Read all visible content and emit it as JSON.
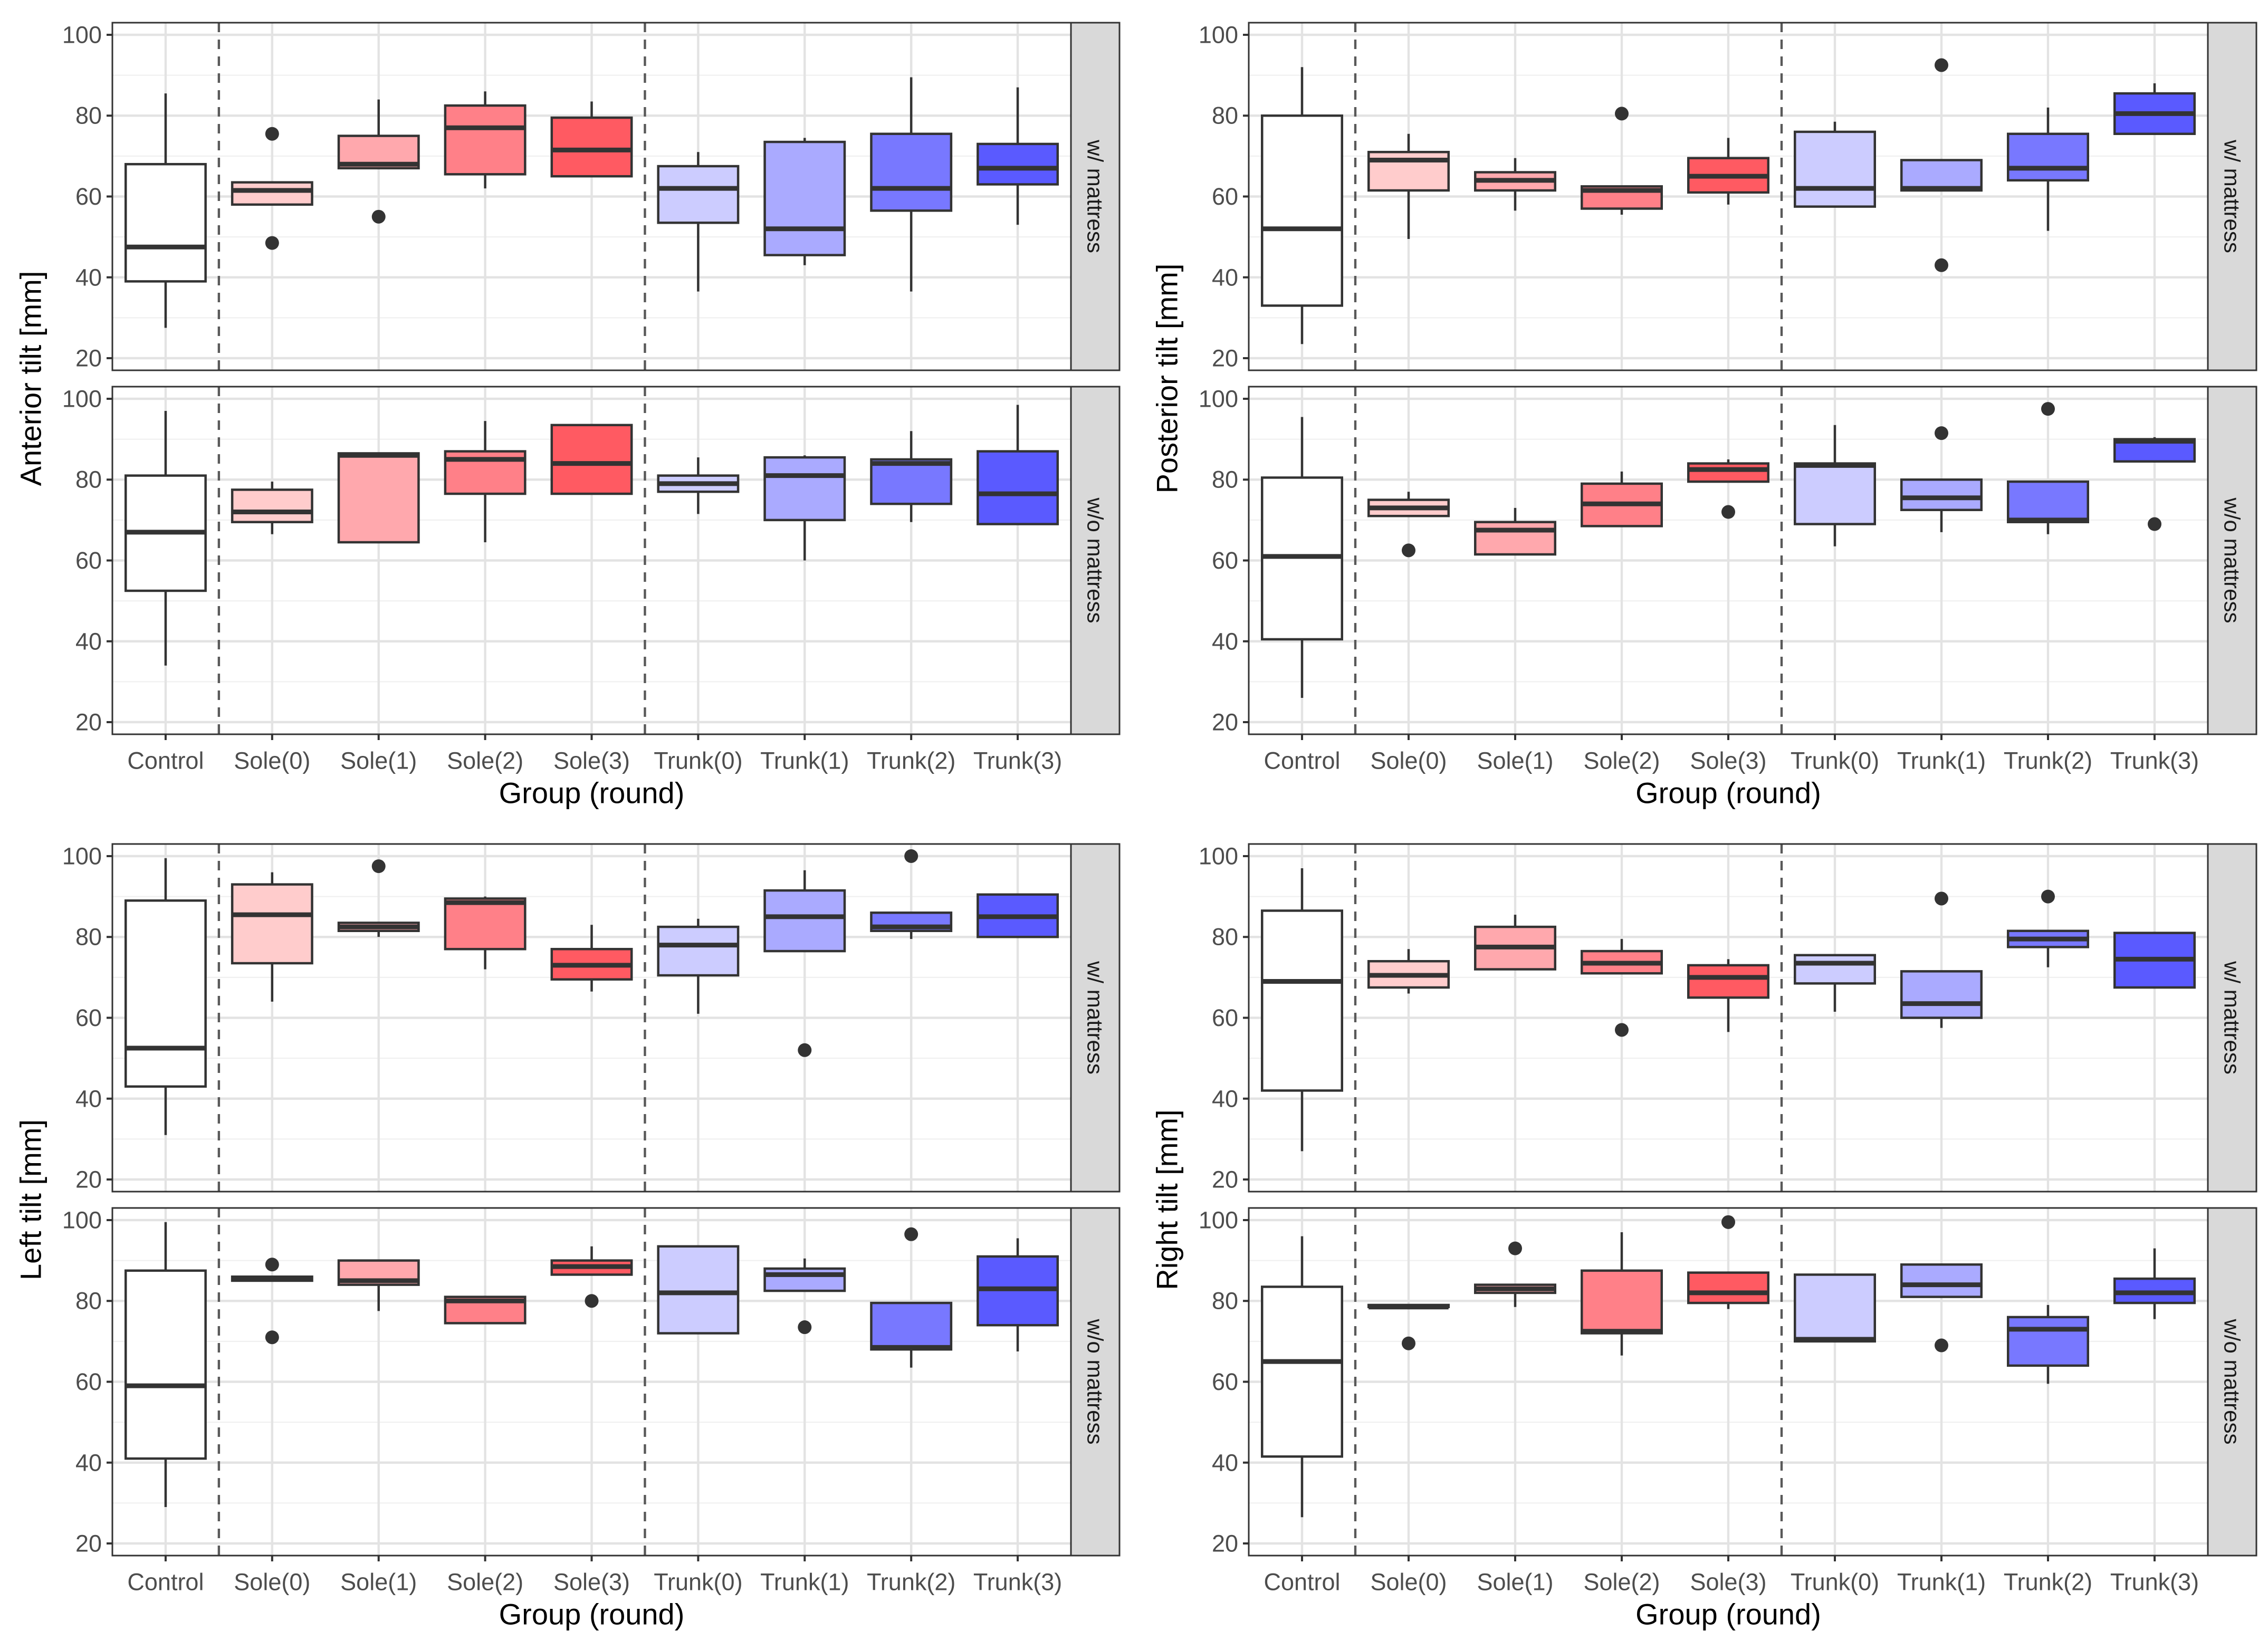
{
  "chart_data": {
    "type": "boxplot",
    "title": "",
    "categories": [
      "Control",
      "Sole(0)",
      "Sole(1)",
      "Sole(2)",
      "Sole(3)",
      "Trunk(0)",
      "Trunk(1)",
      "Trunk(2)",
      "Trunk(3)"
    ],
    "fill_colors": [
      "#ffffff",
      "#ffcccc",
      "#ffa8ad",
      "#ff8088",
      "#ff5a62",
      "#ccccff",
      "#aaaaff",
      "#7878ff",
      "#5a5aff"
    ],
    "facets": [
      "w/ mattress",
      "w/o mattress"
    ],
    "xlabel": "Group (round)",
    "ylim": [
      17,
      103
    ],
    "yticks": [
      20,
      40,
      60,
      80,
      100
    ],
    "grid": true,
    "separators_after": [
      "Control",
      "Sole(3)"
    ],
    "panels": [
      {
        "ylabel": "Anterior tilt [mm]",
        "facets": [
          {
            "label": "w/ mattress",
            "boxes": [
              {
                "q1": 39,
                "median": 47.5,
                "q3": 68,
                "whislo": 27.5,
                "whishi": 85.5,
                "outliers": []
              },
              {
                "q1": 58,
                "median": 61.5,
                "q3": 63.5,
                "whislo": 58,
                "whishi": 63.5,
                "outliers": [
                  75.5,
                  48.5
                ]
              },
              {
                "q1": 67,
                "median": 68,
                "q3": 75,
                "whislo": 67,
                "whishi": 84,
                "outliers": [
                  55
                ]
              },
              {
                "q1": 65.5,
                "median": 77,
                "q3": 82.5,
                "whislo": 62,
                "whishi": 86,
                "outliers": []
              },
              {
                "q1": 65,
                "median": 71.5,
                "q3": 79.5,
                "whislo": 65,
                "whishi": 83.5,
                "outliers": []
              },
              {
                "q1": 53.5,
                "median": 62,
                "q3": 67.5,
                "whislo": 36.5,
                "whishi": 71,
                "outliers": []
              },
              {
                "q1": 45.5,
                "median": 52,
                "q3": 73.5,
                "whislo": 43,
                "whishi": 74.5,
                "outliers": []
              },
              {
                "q1": 56.5,
                "median": 62,
                "q3": 75.5,
                "whislo": 36.5,
                "whishi": 89.5,
                "outliers": []
              },
              {
                "q1": 63,
                "median": 67,
                "q3": 73,
                "whislo": 53,
                "whishi": 87,
                "outliers": []
              }
            ]
          },
          {
            "label": "w/o mattress",
            "boxes": [
              {
                "q1": 52.5,
                "median": 67,
                "q3": 81,
                "whislo": 34,
                "whishi": 97,
                "outliers": []
              },
              {
                "q1": 69.5,
                "median": 72,
                "q3": 77.5,
                "whislo": 66.5,
                "whishi": 79.5,
                "outliers": []
              },
              {
                "q1": 64.5,
                "median": 86,
                "q3": 86.5,
                "whislo": 64.5,
                "whishi": 86.5,
                "outliers": []
              },
              {
                "q1": 76.5,
                "median": 85,
                "q3": 87,
                "whislo": 64.5,
                "whishi": 94.5,
                "outliers": []
              },
              {
                "q1": 76.5,
                "median": 84,
                "q3": 93.5,
                "whislo": 76.5,
                "whishi": 93.5,
                "outliers": []
              },
              {
                "q1": 77,
                "median": 79,
                "q3": 81,
                "whislo": 71.5,
                "whishi": 85.5,
                "outliers": []
              },
              {
                "q1": 70,
                "median": 81,
                "q3": 85.5,
                "whislo": 60,
                "whishi": 86,
                "outliers": []
              },
              {
                "q1": 74,
                "median": 84,
                "q3": 85,
                "whislo": 69.5,
                "whishi": 92,
                "outliers": []
              },
              {
                "q1": 69,
                "median": 76.5,
                "q3": 87,
                "whislo": 69,
                "whishi": 98.5,
                "outliers": []
              }
            ]
          }
        ]
      },
      {
        "ylabel": "Posterior tilt [mm]",
        "facets": [
          {
            "label": "w/ mattress",
            "boxes": [
              {
                "q1": 33,
                "median": 52,
                "q3": 80,
                "whislo": 23.5,
                "whishi": 92,
                "outliers": []
              },
              {
                "q1": 61.5,
                "median": 69,
                "q3": 71,
                "whislo": 49.5,
                "whishi": 75.5,
                "outliers": []
              },
              {
                "q1": 61.5,
                "median": 64,
                "q3": 66,
                "whislo": 56.5,
                "whishi": 69.5,
                "outliers": []
              },
              {
                "q1": 57,
                "median": 61.5,
                "q3": 62.5,
                "whislo": 55.5,
                "whishi": 62.5,
                "outliers": [
                  80.5
                ]
              },
              {
                "q1": 61,
                "median": 65,
                "q3": 69.5,
                "whislo": 58,
                "whishi": 74.5,
                "outliers": []
              },
              {
                "q1": 57.5,
                "median": 62,
                "q3": 76,
                "whislo": 57.5,
                "whishi": 78.5,
                "outliers": []
              },
              {
                "q1": 61.5,
                "median": 62,
                "q3": 69,
                "whislo": 61.5,
                "whishi": 69,
                "outliers": [
                  92.5,
                  43
                ]
              },
              {
                "q1": 64,
                "median": 67,
                "q3": 75.5,
                "whislo": 51.5,
                "whishi": 82,
                "outliers": []
              },
              {
                "q1": 75.5,
                "median": 80.5,
                "q3": 85.5,
                "whislo": 75.5,
                "whishi": 88,
                "outliers": []
              }
            ]
          },
          {
            "label": "w/o mattress",
            "boxes": [
              {
                "q1": 40.5,
                "median": 61,
                "q3": 80.5,
                "whislo": 26,
                "whishi": 95.5,
                "outliers": []
              },
              {
                "q1": 71,
                "median": 73,
                "q3": 75,
                "whislo": 71,
                "whishi": 77,
                "outliers": [
                  62.5
                ]
              },
              {
                "q1": 61.5,
                "median": 67.5,
                "q3": 69.5,
                "whislo": 61.5,
                "whishi": 73,
                "outliers": []
              },
              {
                "q1": 68.5,
                "median": 74,
                "q3": 79,
                "whislo": 68.5,
                "whishi": 82,
                "outliers": []
              },
              {
                "q1": 79.5,
                "median": 82.5,
                "q3": 84,
                "whislo": 79.5,
                "whishi": 85,
                "outliers": [
                  72
                ]
              },
              {
                "q1": 69,
                "median": 83.5,
                "q3": 84,
                "whislo": 63.5,
                "whishi": 93.5,
                "outliers": []
              },
              {
                "q1": 72.5,
                "median": 75.5,
                "q3": 80,
                "whislo": 67,
                "whishi": 80,
                "outliers": [
                  91.5
                ]
              },
              {
                "q1": 69.5,
                "median": 70,
                "q3": 79.5,
                "whislo": 66.5,
                "whishi": 79.5,
                "outliers": [
                  97.5
                ]
              },
              {
                "q1": 84.5,
                "median": 89.5,
                "q3": 90,
                "whislo": 84.5,
                "whishi": 90.5,
                "outliers": [
                  69
                ]
              }
            ]
          }
        ]
      },
      {
        "ylabel": "Left tilt [mm]",
        "facets": [
          {
            "label": "w/ mattress",
            "boxes": [
              {
                "q1": 43,
                "median": 52.5,
                "q3": 89,
                "whislo": 31,
                "whishi": 99.5,
                "outliers": []
              },
              {
                "q1": 73.5,
                "median": 85.5,
                "q3": 93,
                "whislo": 64,
                "whishi": 96,
                "outliers": []
              },
              {
                "q1": 81.5,
                "median": 82.5,
                "q3": 83.5,
                "whislo": 80,
                "whishi": 83.5,
                "outliers": [
                  97.5
                ]
              },
              {
                "q1": 77,
                "median": 88.5,
                "q3": 89.5,
                "whislo": 72,
                "whishi": 90,
                "outliers": []
              },
              {
                "q1": 69.5,
                "median": 73,
                "q3": 77,
                "whislo": 66.5,
                "whishi": 83,
                "outliers": []
              },
              {
                "q1": 70.5,
                "median": 78,
                "q3": 82.5,
                "whislo": 61,
                "whishi": 84.5,
                "outliers": []
              },
              {
                "q1": 76.5,
                "median": 85,
                "q3": 91.5,
                "whislo": 76.5,
                "whishi": 96.5,
                "outliers": [
                  52
                ]
              },
              {
                "q1": 81.5,
                "median": 82.5,
                "q3": 86,
                "whislo": 79.5,
                "whishi": 86,
                "outliers": [
                  100
                ]
              },
              {
                "q1": 80,
                "median": 85,
                "q3": 90.5,
                "whislo": 80,
                "whishi": 90.5,
                "outliers": []
              }
            ]
          },
          {
            "label": "w/o mattress",
            "boxes": [
              {
                "q1": 41,
                "median": 59,
                "q3": 87.5,
                "whislo": 29,
                "whishi": 99.5,
                "outliers": []
              },
              {
                "q1": 85,
                "median": 85.5,
                "q3": 86,
                "whislo": 85,
                "whishi": 86,
                "outliers": [
                  89,
                  71
                ]
              },
              {
                "q1": 84,
                "median": 85,
                "q3": 90,
                "whislo": 77.5,
                "whishi": 90,
                "outliers": []
              },
              {
                "q1": 74.5,
                "median": 80,
                "q3": 81,
                "whislo": 74.5,
                "whishi": 81,
                "outliers": []
              },
              {
                "q1": 86.5,
                "median": 88.5,
                "q3": 90,
                "whislo": 86.5,
                "whishi": 93.5,
                "outliers": [
                  80
                ]
              },
              {
                "q1": 72,
                "median": 82,
                "q3": 93.5,
                "whislo": 72,
                "whishi": 93.5,
                "outliers": []
              },
              {
                "q1": 82.5,
                "median": 86.5,
                "q3": 88,
                "whislo": 82.5,
                "whishi": 90.5,
                "outliers": [
                  73.5
                ]
              },
              {
                "q1": 68,
                "median": 68.5,
                "q3": 79.5,
                "whislo": 63.5,
                "whishi": 79.5,
                "outliers": [
                  96.5
                ]
              },
              {
                "q1": 74,
                "median": 83,
                "q3": 91,
                "whislo": 67.5,
                "whishi": 95.5,
                "outliers": []
              }
            ]
          }
        ]
      },
      {
        "ylabel": "Right tilt [mm]",
        "facets": [
          {
            "label": "w/ mattress",
            "boxes": [
              {
                "q1": 42,
                "median": 69,
                "q3": 86.5,
                "whislo": 27,
                "whishi": 97,
                "outliers": []
              },
              {
                "q1": 67.5,
                "median": 70.5,
                "q3": 74,
                "whislo": 66,
                "whishi": 77,
                "outliers": []
              },
              {
                "q1": 72,
                "median": 77.5,
                "q3": 82.5,
                "whislo": 72,
                "whishi": 85.5,
                "outliers": []
              },
              {
                "q1": 71,
                "median": 73.5,
                "q3": 76.5,
                "whislo": 71,
                "whishi": 79.5,
                "outliers": [
                  57
                ]
              },
              {
                "q1": 65,
                "median": 70,
                "q3": 73,
                "whislo": 56.5,
                "whishi": 74.5,
                "outliers": []
              },
              {
                "q1": 68.5,
                "median": 73.5,
                "q3": 75.5,
                "whislo": 61.5,
                "whishi": 75.5,
                "outliers": []
              },
              {
                "q1": 60,
                "median": 63.5,
                "q3": 71.5,
                "whislo": 57.5,
                "whishi": 71.5,
                "outliers": [
                  89.5
                ]
              },
              {
                "q1": 77.5,
                "median": 79.5,
                "q3": 81.5,
                "whislo": 72.5,
                "whishi": 81.5,
                "outliers": [
                  90
                ]
              },
              {
                "q1": 67.5,
                "median": 74.5,
                "q3": 81,
                "whislo": 67.5,
                "whishi": 81,
                "outliers": []
              }
            ]
          },
          {
            "label": "w/o mattress",
            "boxes": [
              {
                "q1": 41.5,
                "median": 65,
                "q3": 83.5,
                "whislo": 26.5,
                "whishi": 96,
                "outliers": []
              },
              {
                "q1": 78.5,
                "median": 78.5,
                "q3": 79,
                "whislo": 78.5,
                "whishi": 79,
                "outliers": [
                  69.5
                ]
              },
              {
                "q1": 82,
                "median": 83,
                "q3": 84,
                "whislo": 78.5,
                "whishi": 84,
                "outliers": [
                  93
                ]
              },
              {
                "q1": 72,
                "median": 72.5,
                "q3": 87.5,
                "whislo": 66.5,
                "whishi": 97,
                "outliers": []
              },
              {
                "q1": 79.5,
                "median": 82,
                "q3": 87,
                "whislo": 78,
                "whishi": 87,
                "outliers": [
                  99.5
                ]
              },
              {
                "q1": 70,
                "median": 70.5,
                "q3": 86.5,
                "whislo": 70,
                "whishi": 86.5,
                "outliers": []
              },
              {
                "q1": 81,
                "median": 84,
                "q3": 89,
                "whislo": 81,
                "whishi": 89,
                "outliers": [
                  69
                ]
              },
              {
                "q1": 64,
                "median": 73,
                "q3": 76,
                "whislo": 59.5,
                "whishi": 79,
                "outliers": []
              },
              {
                "q1": 79.5,
                "median": 82,
                "q3": 85.5,
                "whislo": 75.5,
                "whishi": 93,
                "outliers": []
              }
            ]
          }
        ]
      }
    ]
  }
}
